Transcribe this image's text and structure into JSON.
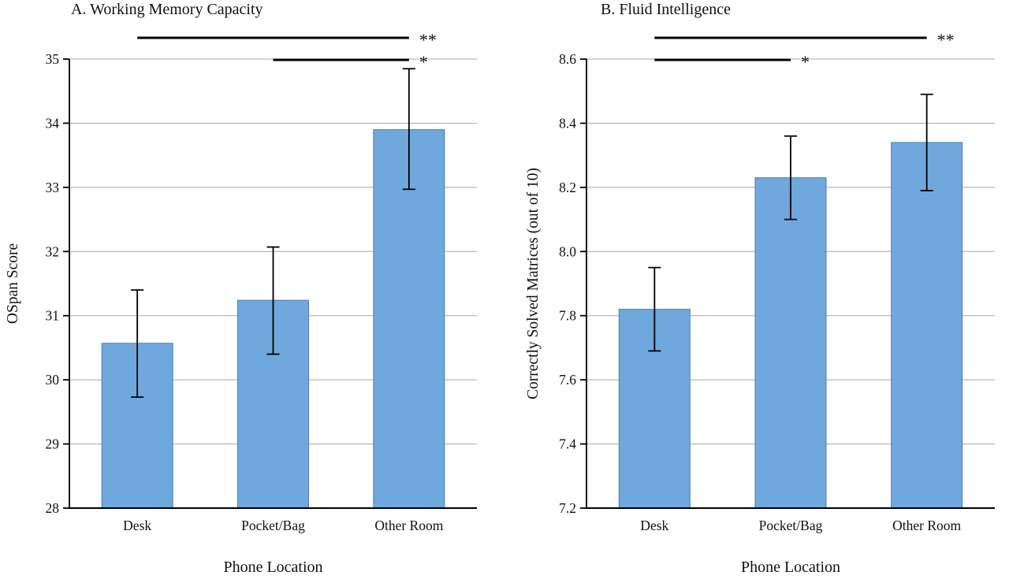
{
  "chart_data": [
    {
      "type": "bar",
      "panel": "A",
      "title": "A. Working Memory Capacity",
      "xlabel": "Phone Location",
      "ylabel": "OSpan Score",
      "categories": [
        "Desk",
        "Pocket/Bag",
        "Other Room"
      ],
      "values": [
        30.57,
        31.24,
        33.9
      ],
      "error_low": [
        29.73,
        30.4,
        32.97
      ],
      "error_high": [
        31.4,
        32.07,
        34.85
      ],
      "ylim": [
        28,
        35
      ],
      "yticks": [
        28,
        29,
        30,
        31,
        32,
        33,
        34,
        35
      ],
      "ytick_labels": [
        "28",
        "29",
        "30",
        "31",
        "32",
        "33",
        "34",
        "35"
      ],
      "grid": true,
      "legend": "none",
      "significance": [
        {
          "from": 0,
          "to": 2,
          "label": "**",
          "row": 0
        },
        {
          "from": 1,
          "to": 2,
          "label": "*",
          "row": 1
        }
      ]
    },
    {
      "type": "bar",
      "panel": "B",
      "title": "B. Fluid Intelligence",
      "xlabel": "Phone Location",
      "ylabel": "Correctly Solved Matrices (out of 10)",
      "categories": [
        "Desk",
        "Pocket/Bag",
        "Other Room"
      ],
      "values": [
        7.82,
        8.23,
        8.34
      ],
      "error_low": [
        7.69,
        8.1,
        8.19
      ],
      "error_high": [
        7.95,
        8.36,
        8.49
      ],
      "ylim": [
        7.2,
        8.6
      ],
      "yticks": [
        7.2,
        7.4,
        7.6,
        7.8,
        8.0,
        8.2,
        8.4,
        8.6
      ],
      "ytick_labels": [
        "7.2",
        "7.4",
        "7.6",
        "7.8",
        "8.0",
        "8.2",
        "8.4",
        "8.6"
      ],
      "grid": true,
      "legend": "none",
      "significance": [
        {
          "from": 0,
          "to": 2,
          "label": "**",
          "row": 0
        },
        {
          "from": 0,
          "to": 1,
          "label": "*",
          "row": 1
        }
      ]
    }
  ],
  "colors": {
    "bar_fill": "#6fa8dc",
    "bar_stroke": "#4a7ebf",
    "grid": "#a8a8a8",
    "axis": "#000000",
    "text": "#111111"
  }
}
